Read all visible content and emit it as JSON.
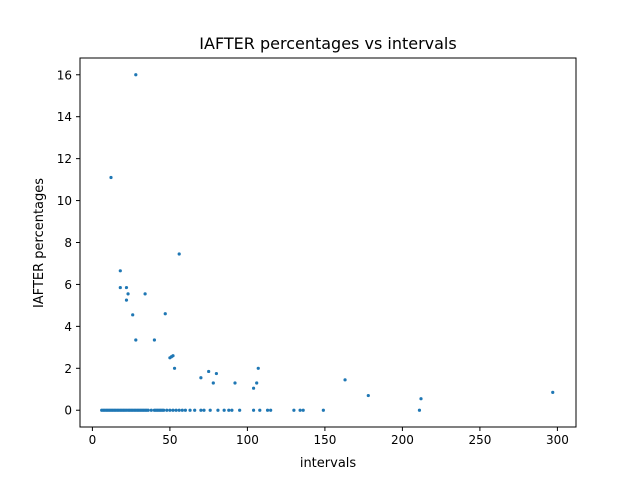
{
  "chart_data": {
    "type": "scatter",
    "title": "IAFTER percentages vs intervals",
    "xlabel": "intervals",
    "ylabel": "IAFTER percentages",
    "xlim": [
      -8,
      312
    ],
    "ylim": [
      -0.8,
      16.8
    ],
    "xticks": [
      0,
      50,
      100,
      150,
      200,
      250,
      300
    ],
    "yticks": [
      0,
      2,
      4,
      6,
      8,
      10,
      12,
      14,
      16
    ],
    "grid": false,
    "marker_color": "#1f77b4",
    "series": [
      {
        "points": [
          {
            "x": 6,
            "y": 0
          },
          {
            "x": 7,
            "y": 0
          },
          {
            "x": 8,
            "y": 0
          },
          {
            "x": 9,
            "y": 0
          },
          {
            "x": 10,
            "y": 0
          },
          {
            "x": 11,
            "y": 0
          },
          {
            "x": 12,
            "y": 0
          },
          {
            "x": 13,
            "y": 0
          },
          {
            "x": 14,
            "y": 0
          },
          {
            "x": 15,
            "y": 0
          },
          {
            "x": 16,
            "y": 0
          },
          {
            "x": 17,
            "y": 0
          },
          {
            "x": 18,
            "y": 0
          },
          {
            "x": 19,
            "y": 0
          },
          {
            "x": 20,
            "y": 0
          },
          {
            "x": 21,
            "y": 0
          },
          {
            "x": 22,
            "y": 0
          },
          {
            "x": 23,
            "y": 0
          },
          {
            "x": 24,
            "y": 0
          },
          {
            "x": 25,
            "y": 0
          },
          {
            "x": 26,
            "y": 0
          },
          {
            "x": 27,
            "y": 0
          },
          {
            "x": 28,
            "y": 0
          },
          {
            "x": 29,
            "y": 0
          },
          {
            "x": 30,
            "y": 0
          },
          {
            "x": 31,
            "y": 0
          },
          {
            "x": 32,
            "y": 0
          },
          {
            "x": 33,
            "y": 0
          },
          {
            "x": 34,
            "y": 0
          },
          {
            "x": 35,
            "y": 0
          },
          {
            "x": 36,
            "y": 0
          },
          {
            "x": 38,
            "y": 0
          },
          {
            "x": 40,
            "y": 0
          },
          {
            "x": 41,
            "y": 0
          },
          {
            "x": 42,
            "y": 0
          },
          {
            "x": 43,
            "y": 0
          },
          {
            "x": 44,
            "y": 0
          },
          {
            "x": 45,
            "y": 0
          },
          {
            "x": 46,
            "y": 0
          },
          {
            "x": 48,
            "y": 0
          },
          {
            "x": 50,
            "y": 0
          },
          {
            "x": 52,
            "y": 0
          },
          {
            "x": 54,
            "y": 0
          },
          {
            "x": 56,
            "y": 0
          },
          {
            "x": 58,
            "y": 0
          },
          {
            "x": 60,
            "y": 0
          },
          {
            "x": 63,
            "y": 0
          },
          {
            "x": 66,
            "y": 0
          },
          {
            "x": 70,
            "y": 0
          },
          {
            "x": 72,
            "y": 0
          },
          {
            "x": 76,
            "y": 0
          },
          {
            "x": 81,
            "y": 0
          },
          {
            "x": 85,
            "y": 0
          },
          {
            "x": 88,
            "y": 0
          },
          {
            "x": 90,
            "y": 0
          },
          {
            "x": 95,
            "y": 0
          },
          {
            "x": 104,
            "y": 0
          },
          {
            "x": 108,
            "y": 0
          },
          {
            "x": 113,
            "y": 0
          },
          {
            "x": 115,
            "y": 0
          },
          {
            "x": 130,
            "y": 0
          },
          {
            "x": 134,
            "y": 0
          },
          {
            "x": 136,
            "y": 0
          },
          {
            "x": 149,
            "y": 0
          },
          {
            "x": 211,
            "y": 0
          },
          {
            "x": 12,
            "y": 11.1
          },
          {
            "x": 28,
            "y": 16.0
          },
          {
            "x": 18,
            "y": 6.65
          },
          {
            "x": 18,
            "y": 5.85
          },
          {
            "x": 22,
            "y": 5.85
          },
          {
            "x": 23,
            "y": 5.55
          },
          {
            "x": 22,
            "y": 5.25
          },
          {
            "x": 26,
            "y": 4.55
          },
          {
            "x": 34,
            "y": 5.55
          },
          {
            "x": 28,
            "y": 3.35
          },
          {
            "x": 40,
            "y": 3.35
          },
          {
            "x": 47,
            "y": 4.6
          },
          {
            "x": 50,
            "y": 2.5
          },
          {
            "x": 51,
            "y": 2.55
          },
          {
            "x": 52,
            "y": 2.6
          },
          {
            "x": 53,
            "y": 2.0
          },
          {
            "x": 56,
            "y": 7.45
          },
          {
            "x": 70,
            "y": 1.55
          },
          {
            "x": 75,
            "y": 1.85
          },
          {
            "x": 78,
            "y": 1.3
          },
          {
            "x": 80,
            "y": 1.75
          },
          {
            "x": 92,
            "y": 1.3
          },
          {
            "x": 104,
            "y": 1.05
          },
          {
            "x": 106,
            "y": 1.3
          },
          {
            "x": 107,
            "y": 2.0
          },
          {
            "x": 163,
            "y": 1.45
          },
          {
            "x": 178,
            "y": 0.7
          },
          {
            "x": 212,
            "y": 0.55
          },
          {
            "x": 297,
            "y": 0.85
          }
        ]
      }
    ]
  }
}
